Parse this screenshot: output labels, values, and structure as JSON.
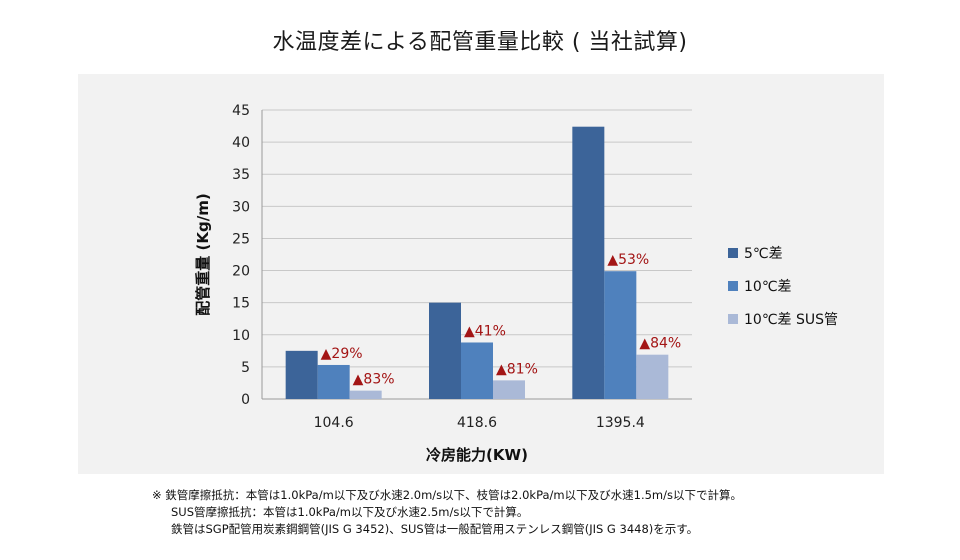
{
  "title": "水温度差による配管重量比較 ( 当社試算)",
  "chart_data": {
    "type": "bar",
    "categories": [
      "104.6",
      "418.6",
      "1395.4"
    ],
    "series": [
      {
        "name": "5℃差",
        "color": "#3c6499",
        "values": [
          7.5,
          15.0,
          42.4
        ]
      },
      {
        "name": "10℃差",
        "color": "#4f81bd",
        "values": [
          5.3,
          8.8,
          19.9
        ]
      },
      {
        "name": "10℃差 SUS管",
        "color": "#aab9d7",
        "values": [
          1.3,
          2.9,
          6.9
        ]
      }
    ],
    "annotations": [
      {
        "series": 1,
        "category": 0,
        "text": "▲29%"
      },
      {
        "series": 2,
        "category": 0,
        "text": "▲83%"
      },
      {
        "series": 1,
        "category": 1,
        "text": "▲41%"
      },
      {
        "series": 2,
        "category": 1,
        "text": "▲81%"
      },
      {
        "series": 1,
        "category": 2,
        "text": "▲53%"
      },
      {
        "series": 2,
        "category": 2,
        "text": "▲84%"
      }
    ],
    "annotation_color": "#a31515",
    "xlabel": "冷房能力(KW)",
    "ylabel": "配管重量 (Kg/m)",
    "ylim": [
      0,
      45
    ],
    "yticks": [
      0,
      5,
      10,
      15,
      20,
      25,
      30,
      35,
      40,
      45
    ],
    "grid": true,
    "legend_position": "right"
  },
  "notes": [
    "※ 鉄管摩擦抵抗：本管は1.0kPa/m以下及び水速2.0m/s以下、枝管は2.0kPa/m以下及び水速1.5m/s以下で計算。",
    "SUS管摩擦抵抗：本管は1.0kPa/m以下及び水速2.5m/s以下で計算。",
    "鉄管はSGP配管用炭素鋼鋼管(JIS G 3452)、SUS管は一般配管用ステンレス鋼管(JIS G 3448)を示す。"
  ]
}
